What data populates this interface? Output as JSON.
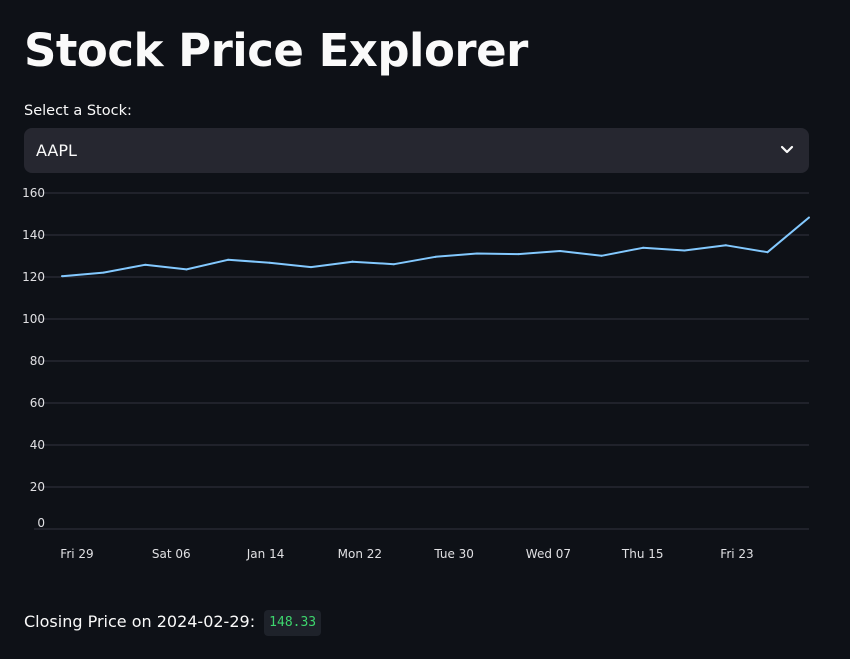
{
  "page": {
    "title": "Stock Price Explorer"
  },
  "selector": {
    "label": "Select a Stock:",
    "selected_value": "AAPL",
    "icon": "chevron-down-icon"
  },
  "closing": {
    "label": "Closing Price on 2024-02-29:",
    "value": "148.33",
    "value_color": "#3dd56d"
  },
  "colors": {
    "background": "#0e1117",
    "line": "#83c9ff",
    "grid": "#31333f",
    "select_bg": "#262730"
  },
  "chart_data": {
    "type": "line",
    "x_tick_labels": [
      "Fri 29",
      "Sat 06",
      "Jan 14",
      "Mon 22",
      "Tue 30",
      "Wed 07",
      "Thu 15",
      "Fri 23"
    ],
    "y_tick_labels": [
      "0",
      "20",
      "40",
      "60",
      "80",
      "100",
      "120",
      "140",
      "160"
    ],
    "ylim": [
      0,
      160
    ],
    "grid": true,
    "series": [
      {
        "values": [
          120.4,
          122.1,
          125.8,
          123.6,
          128.2,
          126.8,
          124.7,
          127.3,
          126.1,
          129.6,
          131.2,
          130.9,
          132.4,
          130.1,
          133.9,
          132.6,
          135.1,
          131.8,
          148.33
        ]
      }
    ]
  }
}
